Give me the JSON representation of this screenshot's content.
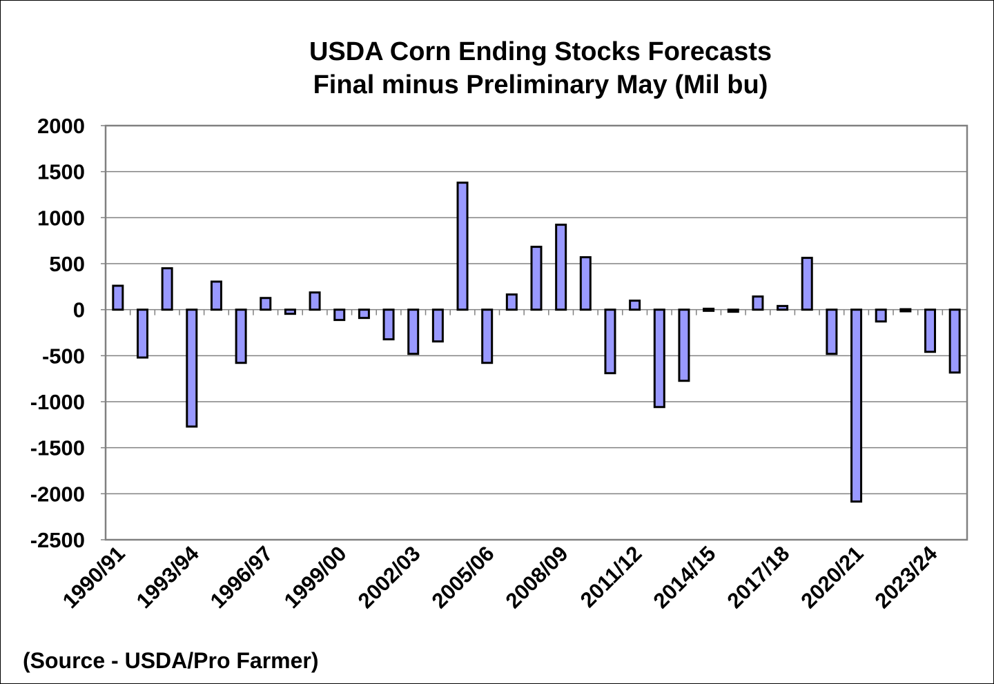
{
  "chart_data": {
    "type": "bar",
    "title": "USDA Corn Ending Stocks Forecasts",
    "subtitle": "Final minus Preliminary May (Mil bu)",
    "source_note": "(Source - USDA/Pro Farmer)",
    "xlabel": "",
    "ylabel": "",
    "ylim": [
      -2500,
      2000
    ],
    "yticks": [
      2000,
      1500,
      1000,
      500,
      0,
      -500,
      -1000,
      -1500,
      -2000,
      -2500
    ],
    "grid": true,
    "legend": "none",
    "bar_color": "#9999FF",
    "bar_edge_color": "#000000",
    "categories": [
      "1990/91",
      "1991/92",
      "1992/93",
      "1993/94",
      "1994/95",
      "1995/96",
      "1996/97",
      "1997/98",
      "1998/99",
      "1999/00",
      "2000/01",
      "2001/02",
      "2002/03",
      "2003/04",
      "2004/05",
      "2005/06",
      "2006/07",
      "2007/08",
      "2008/09",
      "2009/10",
      "2010/11",
      "2011/12",
      "2012/13",
      "2013/14",
      "2014/15",
      "2015/16",
      "2016/17",
      "2017/18",
      "2018/19",
      "2019/20",
      "2020/21",
      "2021/22",
      "2022/23",
      "2023/24",
      "2024/25"
    ],
    "xtick_labels_shown": [
      "1990/91",
      "1993/94",
      "1996/97",
      "1999/00",
      "2002/03",
      "2005/06",
      "2008/09",
      "2011/12",
      "2014/15",
      "2017/18",
      "2020/21",
      "2023/24"
    ],
    "values": [
      260,
      -520,
      450,
      -1270,
      305,
      -578,
      127,
      -45,
      187,
      -112,
      -90,
      -322,
      -480,
      -345,
      1380,
      -578,
      165,
      683,
      923,
      570,
      -690,
      98,
      -1058,
      -773,
      10,
      -10,
      143,
      40,
      563,
      -480,
      -2085,
      -128,
      5,
      -458,
      -683
    ]
  }
}
